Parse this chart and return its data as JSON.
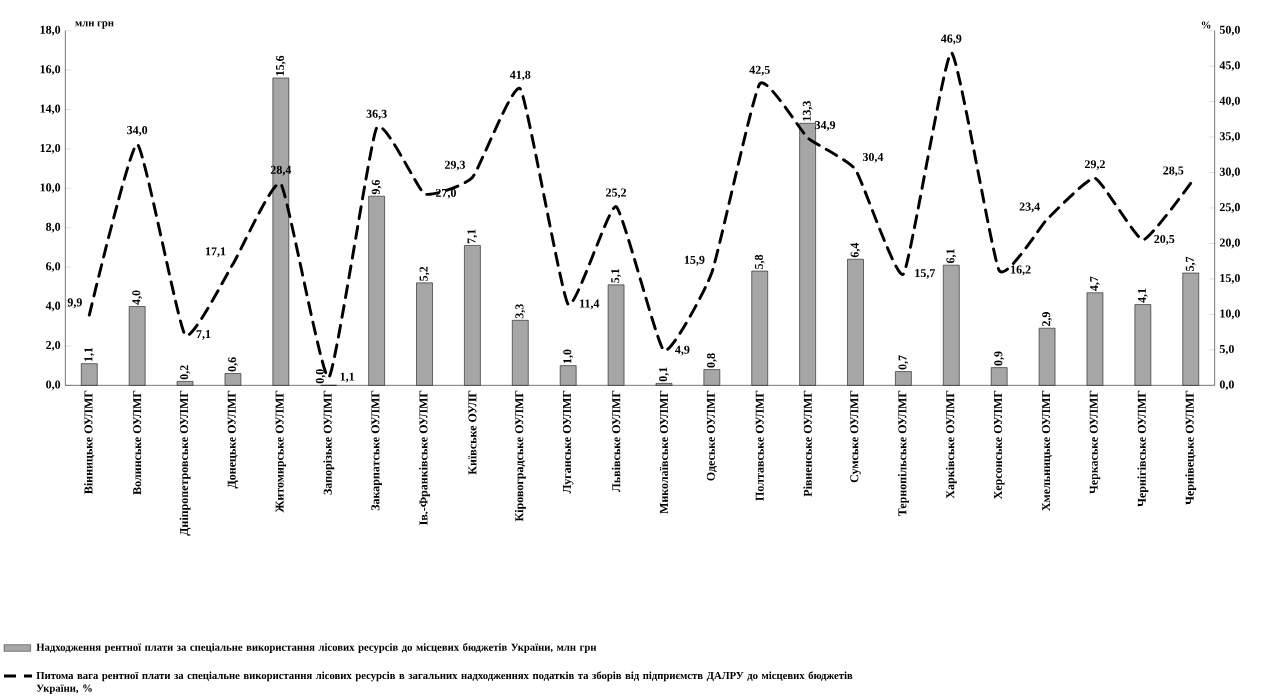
{
  "chart_data": {
    "type": "bar",
    "ylabel": "млн грн",
    "y2label": "%",
    "legend": "bottom",
    "categories": [
      "Вінницьке ОУЛМГ",
      "Волинське ОУЛМГ",
      "Дніпропетровське ОУЛМГ",
      "Донецьке ОУЛМГ",
      "Житомирське ОУЛМГ",
      "Запорізьке ОУЛМГ",
      "Закарпатське ОУЛМГ",
      "Ів.-Франківське ОУЛМГ",
      "Київське ОУЛГ",
      "Кіровоградське ОУЛМГ",
      "Луганське ОУЛМГ",
      "Львівське ОУЛМГ",
      "Миколаївське ОУЛМГ",
      "Одеське ОУЛМГ",
      "Полтавське ОУЛМГ",
      "Рівненське ОУЛМГ",
      "Сумське ОУЛМГ",
      "Тернопільське ОУЛМГ",
      "Харківське ОУЛМГ",
      "Херсонське ОУЛМГ",
      "Хмельницьке ОУЛМГ",
      "Черкаське ОУЛМГ",
      "Чернігівське ОУЛМГ",
      "Чернівецьке ОУЛМГ"
    ],
    "series": [
      {
        "type": "bar",
        "name": "Надходження  рентної плати за спеціальне використання лісових ресурсів до місцевих бюджетів України, млн грн",
        "color": "#a6a6a6",
        "values": [
          1.1,
          4.0,
          0.2,
          0.6,
          15.6,
          0.0,
          9.6,
          5.2,
          7.1,
          3.3,
          1.0,
          5.1,
          0.1,
          0.8,
          5.8,
          13.3,
          6.4,
          0.7,
          6.1,
          0.9,
          2.9,
          4.7,
          4.1,
          5.7
        ],
        "value_labels": [
          "1,1",
          "4,0",
          "0,2",
          "0,6",
          "15,6",
          "0,0",
          "9,6",
          "5,2",
          "7,1",
          "3,3",
          "1,0",
          "5,1",
          "0,1",
          "0,8",
          "5,8",
          "13,3",
          "6,4",
          "0,7",
          "6,1",
          "0,9",
          "2,9",
          "4,7",
          "4,1",
          "5,7"
        ]
      },
      {
        "type": "line",
        "axis": "y2",
        "line_style": "dashed",
        "name": "Питома вага рентної плати за спеціальне використання лісових ресурсів в загальних надходженнях податків та зборів  від підприємств ДАЛРУ до місцевих бюджетів України, %",
        "color": "#000000",
        "values": [
          9.9,
          34.0,
          7.1,
          17.1,
          28.4,
          1.1,
          36.3,
          27.0,
          29.3,
          41.8,
          11.4,
          25.2,
          4.9,
          15.9,
          42.5,
          34.9,
          30.4,
          15.7,
          46.9,
          16.2,
          23.4,
          29.2,
          20.5,
          28.5
        ],
        "value_labels": [
          "9,9",
          "34,0",
          "7,1",
          "17,1",
          "28,4",
          "1,1",
          "36,3",
          "27,0",
          "29,3",
          "41,8",
          "11,4",
          "25,2",
          "4,9",
          "15,9",
          "42,5",
          "34,9",
          "30,4",
          "15,7",
          "46,9",
          "16,2",
          "23,4",
          "29,2",
          "20,5",
          "28,5"
        ]
      }
    ],
    "ylim": [
      0,
      18
    ],
    "yticks": [
      {
        "value": 0,
        "label": "0,0"
      },
      {
        "value": 2,
        "label": "2,0"
      },
      {
        "value": 4,
        "label": "4,0"
      },
      {
        "value": 6,
        "label": "6,0"
      },
      {
        "value": 8,
        "label": "8,0"
      },
      {
        "value": 10,
        "label": "10,0"
      },
      {
        "value": 12,
        "label": "12,0"
      },
      {
        "value": 14,
        "label": "14,0"
      },
      {
        "value": 16,
        "label": "16,0"
      },
      {
        "value": 18,
        "label": "18,0"
      }
    ],
    "y2lim": [
      0,
      50
    ],
    "y2ticks": [
      {
        "value": 0,
        "label": "0,0"
      },
      {
        "value": 5,
        "label": "5,0"
      },
      {
        "value": 10,
        "label": "10,0"
      },
      {
        "value": 15,
        "label": "15,0"
      },
      {
        "value": 20,
        "label": "20,0"
      },
      {
        "value": 25,
        "label": "25,0"
      },
      {
        "value": 30,
        "label": "30,0"
      },
      {
        "value": 35,
        "label": "35,0"
      },
      {
        "value": 40,
        "label": "40,0"
      },
      {
        "value": 45,
        "label": "45,0"
      },
      {
        "value": 50,
        "label": "50,0"
      }
    ]
  }
}
